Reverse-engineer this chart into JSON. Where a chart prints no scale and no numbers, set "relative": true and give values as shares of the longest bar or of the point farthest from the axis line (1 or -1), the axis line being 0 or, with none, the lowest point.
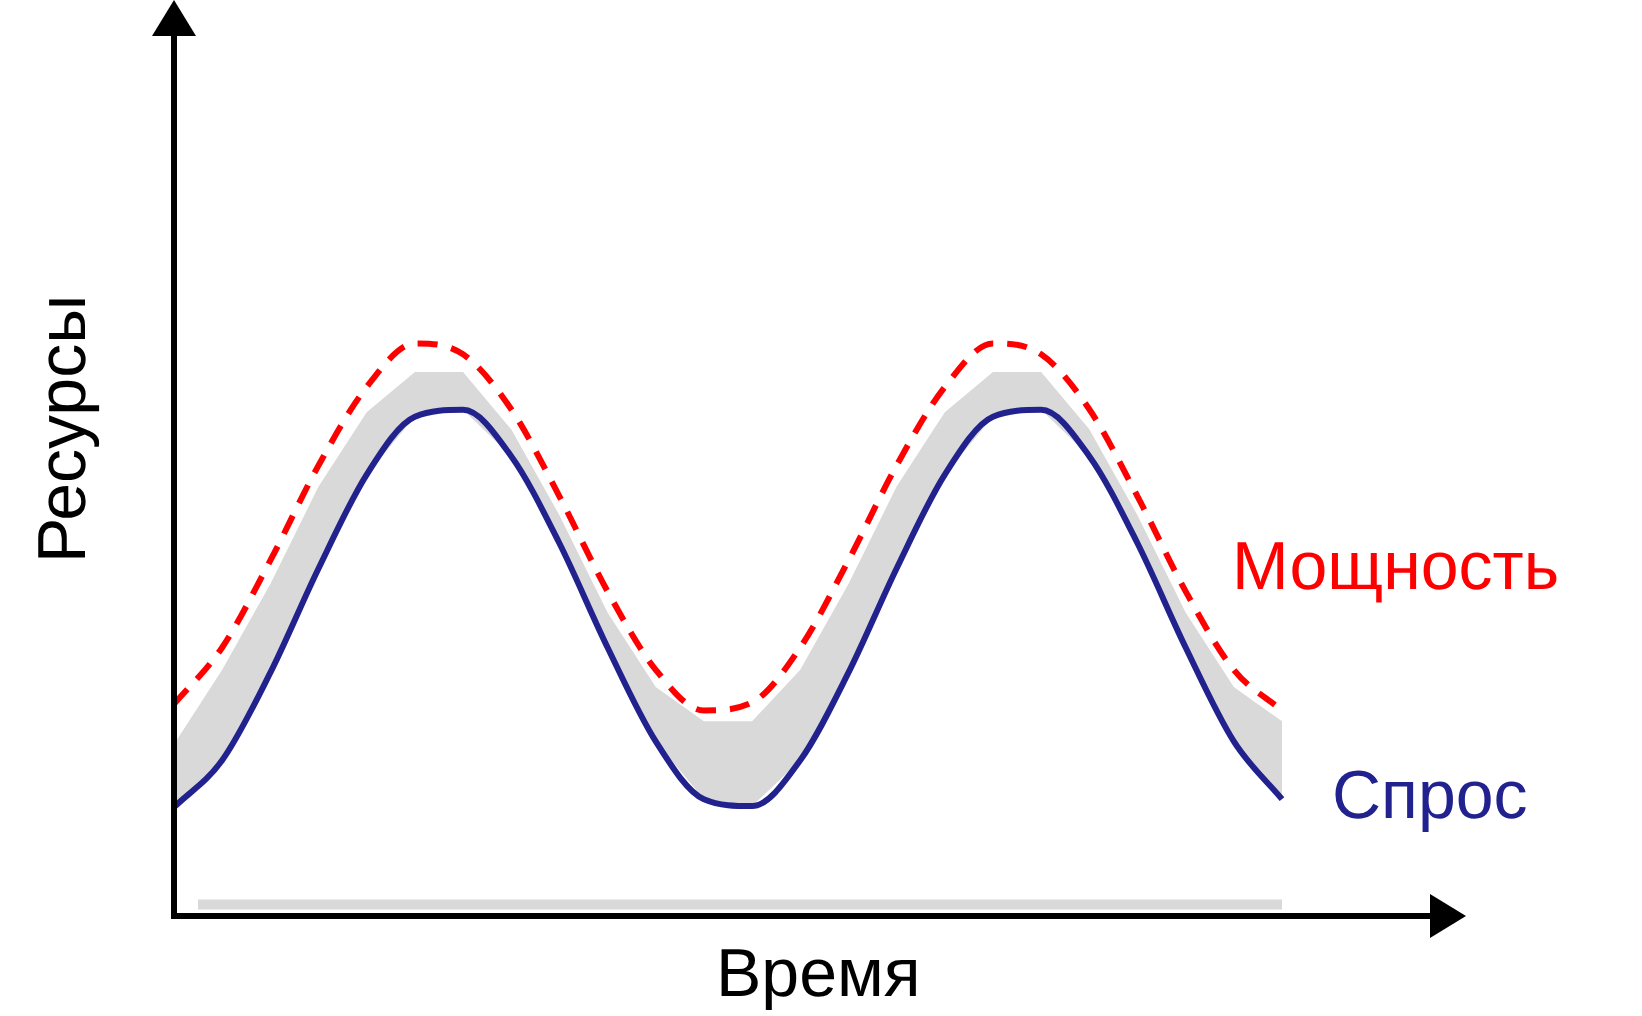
{
  "chart_data": {
    "type": "line",
    "relative": true,
    "xlabel": "Время",
    "ylabel": "Ресурсы",
    "legend": false,
    "tick_labels": false,
    "marker": "none",
    "categories": [
      null,
      null,
      null,
      null,
      null,
      null,
      null,
      null,
      null,
      null,
      null,
      null,
      null,
      null,
      null,
      null,
      null,
      null,
      null,
      null,
      null,
      null,
      null,
      null
    ],
    "series": [
      {
        "name": "Мощность",
        "color": "#ff0000",
        "line_style": "dashed",
        "values": [
          0.37,
          0.469,
          0.621,
          0.787,
          0.924,
          1,
          0.981,
          0.885,
          0.733,
          0.567,
          0.43,
          0.359,
          0.373,
          0.469,
          0.621,
          0.787,
          0.924,
          1,
          0.981,
          0.885,
          0.733,
          0.567,
          0.43,
          0.359
        ]
      },
      {
        "name": "Спрос",
        "color": "#22228e",
        "line_style": "solid",
        "values": [
          0.19,
          0.272,
          0.425,
          0.607,
          0.771,
          0.872,
          0.884,
          0.803,
          0.651,
          0.469,
          0.305,
          0.204,
          0.192,
          0.272,
          0.425,
          0.607,
          0.771,
          0.872,
          0.884,
          0.803,
          0.651,
          0.469,
          0.305,
          0.204
        ],
        "lower": [
          0.19,
          0.272,
          0.425,
          0.607,
          0.771,
          0.872,
          0.884,
          0.803,
          0.651,
          0.469,
          0.305,
          0.204,
          0.192,
          0.272,
          0.425,
          0.607,
          0.771,
          0.872,
          0.884,
          0.803,
          0.651,
          0.469,
          0.305,
          0.204
        ],
        "upper": [
          0.3,
          0.43,
          0.58,
          0.75,
          0.88,
          0.95,
          0.95,
          0.85,
          0.7,
          0.53,
          0.4,
          0.34,
          0.34,
          0.43,
          0.58,
          0.75,
          0.88,
          0.95,
          0.95,
          0.85,
          0.7,
          0.53,
          0.4,
          0.34
        ]
      }
    ],
    "ref_lines": [
      {
        "axis": "y",
        "value": 0.02,
        "color": "#d9d9d9"
      }
    ]
  }
}
